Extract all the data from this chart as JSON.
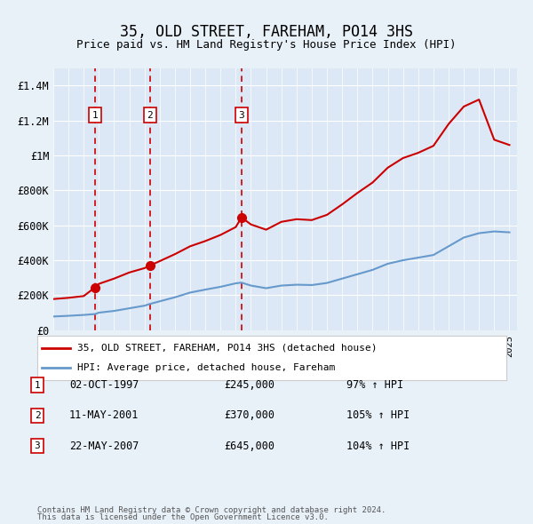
{
  "title": "35, OLD STREET, FAREHAM, PO14 3HS",
  "subtitle": "Price paid vs. HM Land Registry's House Price Index (HPI)",
  "legend_line1": "35, OLD STREET, FAREHAM, PO14 3HS (detached house)",
  "legend_line2": "HPI: Average price, detached house, Fareham",
  "footer1": "Contains HM Land Registry data © Crown copyright and database right 2024.",
  "footer2": "This data is licensed under the Open Government Licence v3.0.",
  "sales": [
    {
      "label": "1",
      "date": "02-OCT-1997",
      "price": 245000,
      "pct": "97%",
      "dir": "↑"
    },
    {
      "label": "2",
      "date": "11-MAY-2001",
      "price": 370000,
      "pct": "105%",
      "dir": "↑"
    },
    {
      "label": "3",
      "date": "22-MAY-2007",
      "price": 645000,
      "pct": "104%",
      "dir": "↑"
    }
  ],
  "sale_years": [
    1997.75,
    2001.36,
    2007.38
  ],
  "sale_prices": [
    245000,
    370000,
    645000
  ],
  "background_color": "#e8f0f8",
  "plot_bg": "#dce8f5",
  "red_line_color": "#cc0000",
  "blue_line_color": "#6699cc",
  "grid_color": "#ffffff",
  "sale_marker_color": "#cc0000",
  "dashed_line_color": "#cc0000",
  "box_color": "#cc0000",
  "ylim": [
    0,
    1500000
  ],
  "yticks": [
    0,
    200000,
    400000,
    600000,
    800000,
    1000000,
    1200000,
    1400000
  ],
  "ytick_labels": [
    "£0",
    "£200K",
    "£400K",
    "£600K",
    "£800K",
    "£1M",
    "£1.2M",
    "£1.4M"
  ],
  "hpi_years": [
    1995,
    1996,
    1997,
    1997.75,
    1998,
    1999,
    2000,
    2001,
    2001.36,
    2002,
    2003,
    2004,
    2005,
    2006,
    2007,
    2007.38,
    2008,
    2009,
    2010,
    2011,
    2012,
    2013,
    2014,
    2015,
    2016,
    2017,
    2018,
    2019,
    2020,
    2021,
    2022,
    2023,
    2024,
    2025
  ],
  "hpi_values": [
    78000,
    82000,
    87000,
    92000,
    100000,
    110000,
    125000,
    140000,
    150000,
    165000,
    188000,
    215000,
    232000,
    248000,
    268000,
    272000,
    255000,
    240000,
    255000,
    260000,
    258000,
    270000,
    295000,
    320000,
    345000,
    380000,
    400000,
    415000,
    430000,
    480000,
    530000,
    555000,
    565000,
    560000
  ],
  "red_years": [
    1995,
    1996,
    1997,
    1997.75,
    1998,
    1999,
    2000,
    2001,
    2001.36,
    2002,
    2003,
    2004,
    2005,
    2006,
    2007,
    2007.38,
    2008,
    2009,
    2010,
    2011,
    2012,
    2013,
    2014,
    2015,
    2016,
    2017,
    2018,
    2019,
    2020,
    2021,
    2022,
    2023,
    2024,
    2025
  ],
  "red_values": [
    178000,
    185000,
    195000,
    245000,
    265000,
    295000,
    330000,
    355000,
    370000,
    395000,
    435000,
    480000,
    510000,
    545000,
    590000,
    645000,
    605000,
    575000,
    620000,
    635000,
    630000,
    660000,
    720000,
    785000,
    845000,
    930000,
    985000,
    1015000,
    1055000,
    1180000,
    1280000,
    1320000,
    1090000,
    1060000
  ]
}
